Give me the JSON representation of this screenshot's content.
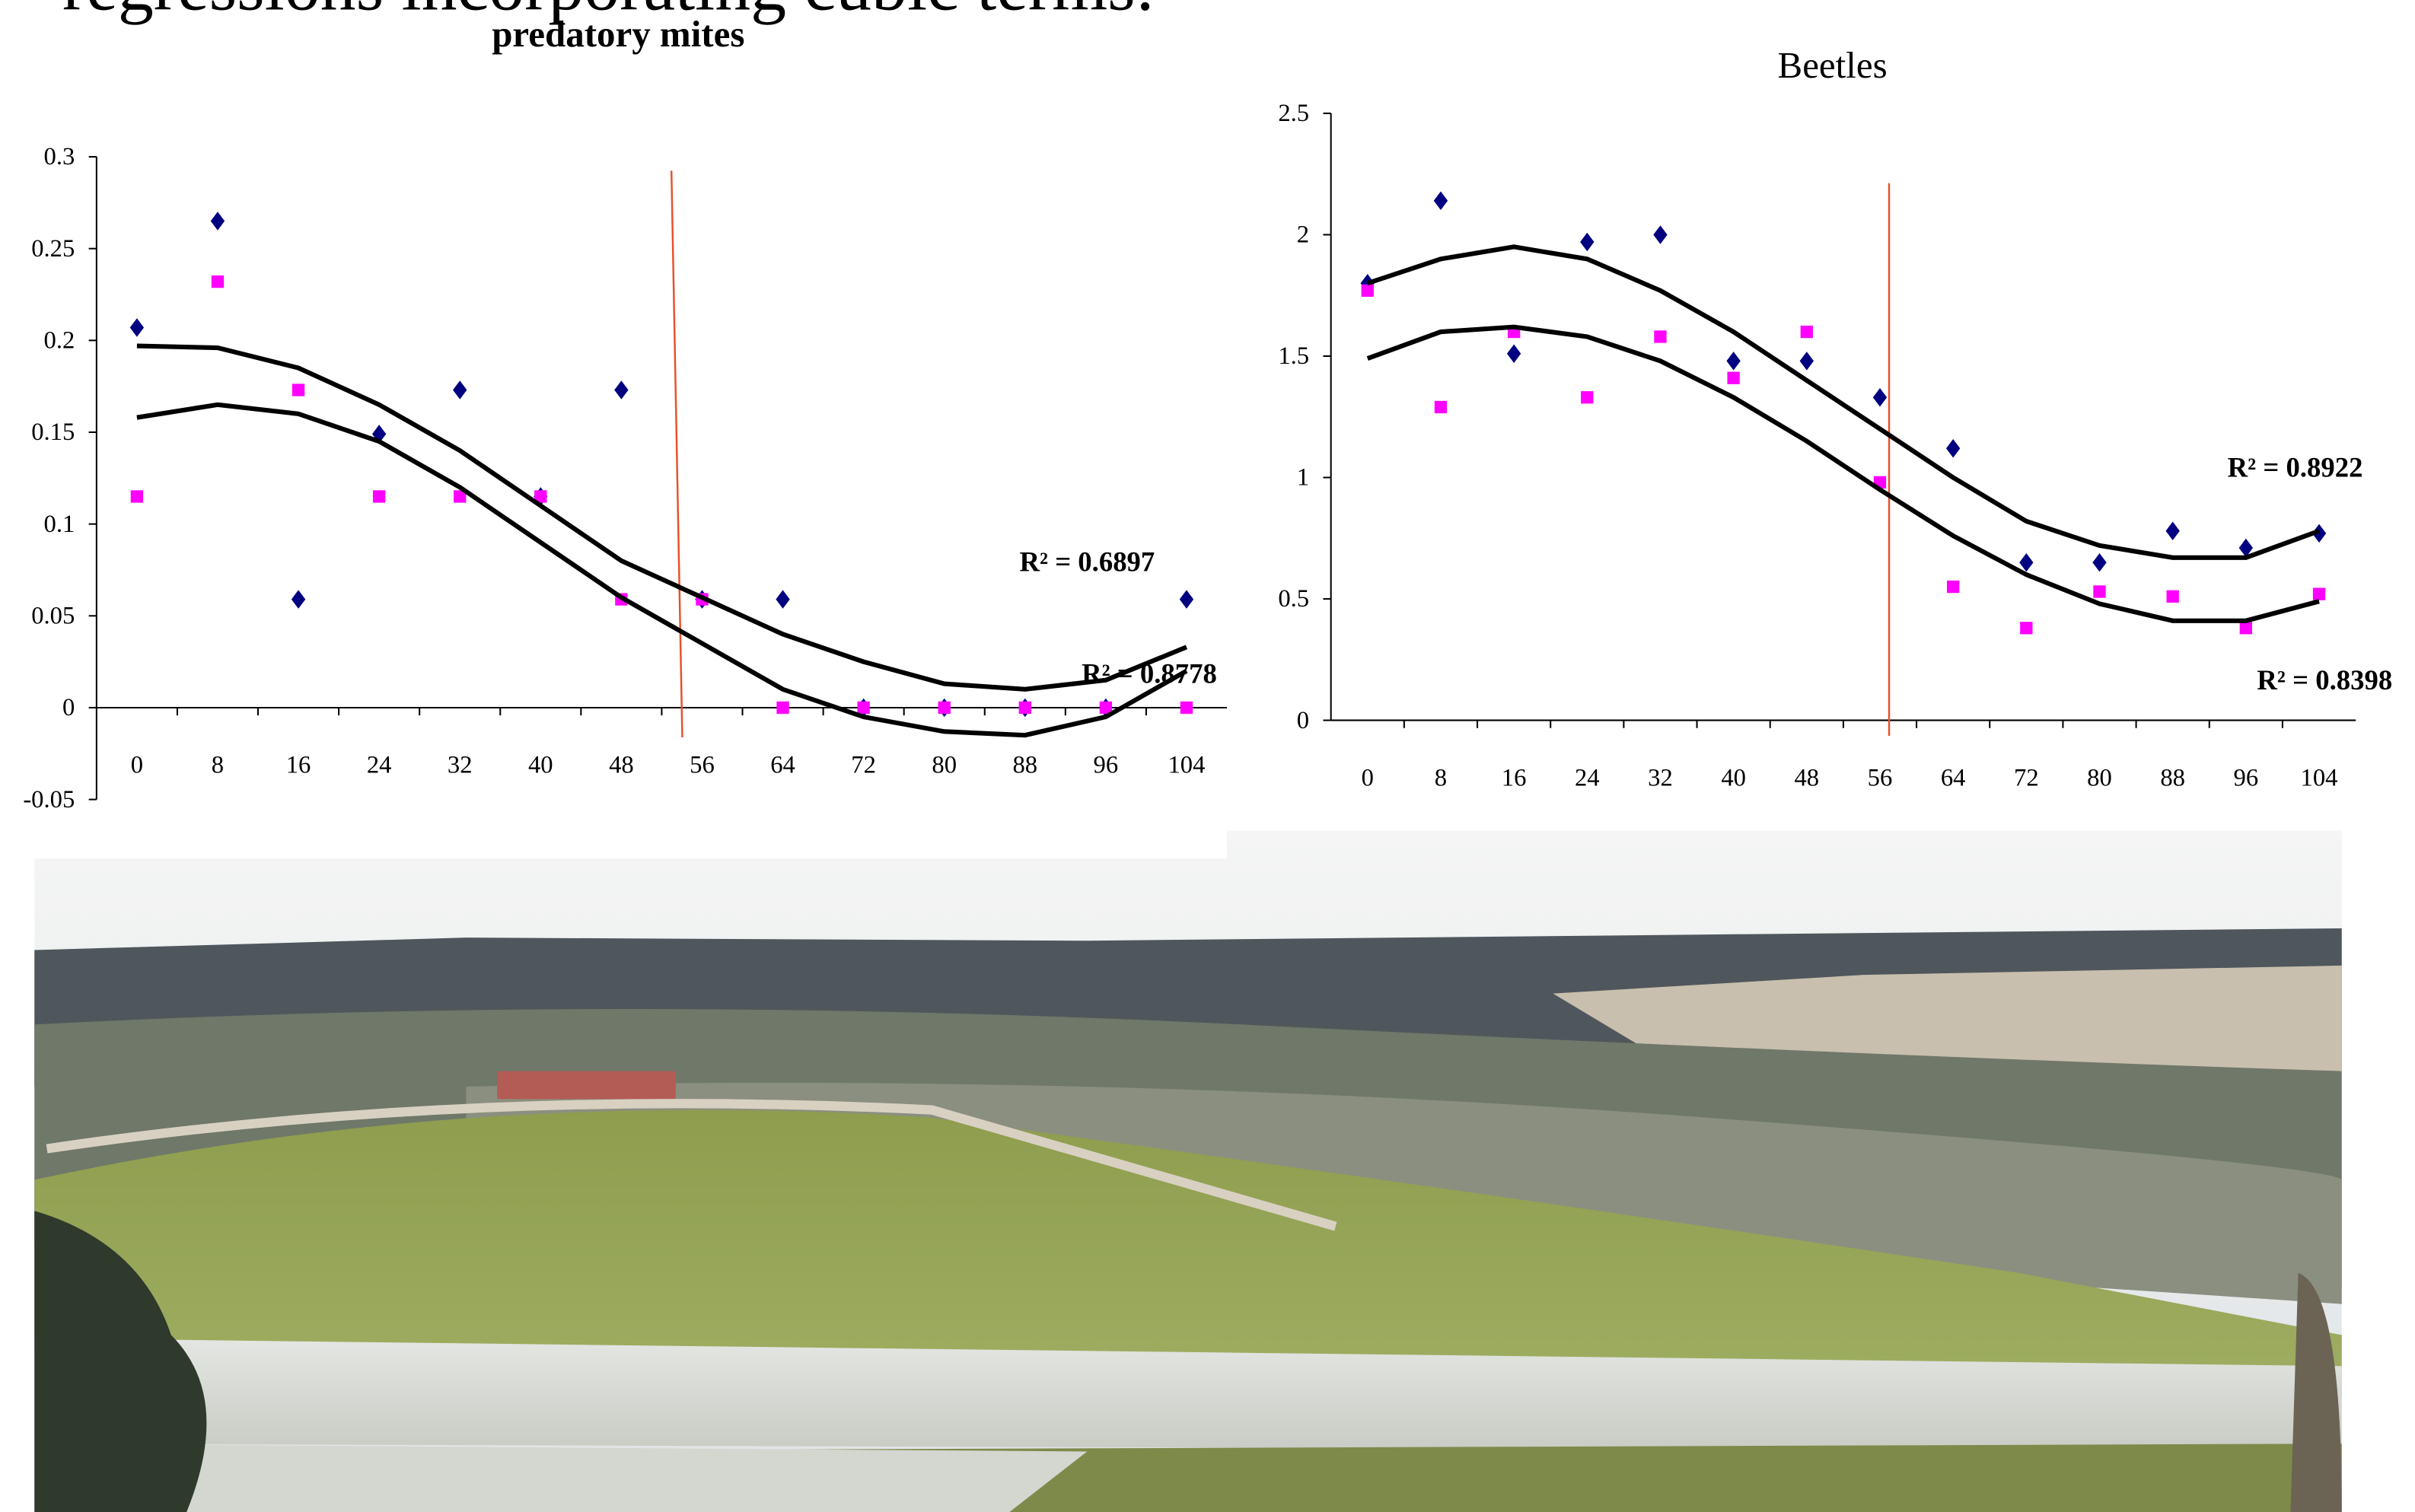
{
  "title": "regressions incorporating cubic terms:",
  "chart_data": [
    {
      "type": "scatter",
      "title": "predatory mites",
      "x": [
        0,
        8,
        16,
        24,
        32,
        40,
        48,
        56,
        64,
        72,
        80,
        88,
        96,
        104
      ],
      "xlim": [
        -4,
        108
      ],
      "ylim": [
        -0.05,
        0.3
      ],
      "yticks": [
        -0.05,
        0,
        0.05,
        0.1,
        0.15,
        0.2,
        0.25,
        0.3
      ],
      "vline": 53.5,
      "vline_color": "#e8502a",
      "series": [
        {
          "marker": "diamond",
          "color": "#000080",
          "values": [
            0.207,
            0.265,
            0.059,
            0.149,
            0.173,
            0.115,
            0.173,
            0.059,
            0.059,
            0,
            0,
            0,
            0,
            0.059
          ]
        },
        {
          "marker": "square",
          "color": "#ff00ff",
          "values": [
            0.115,
            0.232,
            0.173,
            0.115,
            0.115,
            0.115,
            0.059,
            0.059,
            0,
            0,
            0,
            0,
            0,
            0
          ]
        },
        {
          "marker": "line",
          "color": "#000000",
          "values": [
            0.197,
            0.196,
            0.185,
            0.165,
            0.14,
            0.11,
            0.08,
            0.06,
            0.04,
            0.025,
            0.013,
            0.01,
            0.015,
            0.033
          ]
        },
        {
          "marker": "line",
          "color": "#000000",
          "values": [
            0.158,
            0.165,
            0.16,
            0.145,
            0.12,
            0.09,
            0.06,
            0.035,
            0.01,
            -0.005,
            -0.013,
            -0.015,
            -0.005,
            0.02
          ]
        }
      ],
      "annotations": [
        "R² = 0.6897",
        "R² = 0.8778"
      ]
    },
    {
      "type": "scatter",
      "title": "Beetles",
      "x": [
        0,
        8,
        16,
        24,
        32,
        40,
        48,
        56,
        64,
        72,
        80,
        88,
        96,
        104
      ],
      "xlim": [
        -4,
        108
      ],
      "ylim": [
        0,
        2.5
      ],
      "yticks": [
        0,
        0.5,
        1,
        1.5,
        2,
        2.5
      ],
      "vline": 57,
      "vline_color": "#e8502a",
      "series": [
        {
          "marker": "diamond",
          "color": "#000080",
          "values": [
            1.8,
            2.14,
            1.51,
            1.97,
            2.0,
            1.48,
            1.48,
            1.33,
            1.12,
            0.65,
            0.65,
            0.78,
            0.71,
            0.77
          ]
        },
        {
          "marker": "square",
          "color": "#ff00ff",
          "values": [
            1.77,
            1.29,
            1.6,
            1.33,
            1.58,
            1.41,
            1.6,
            0.98,
            0.55,
            0.38,
            0.53,
            0.51,
            0.38,
            0.52
          ]
        },
        {
          "marker": "line",
          "color": "#000000",
          "values": [
            1.8,
            1.9,
            1.95,
            1.9,
            1.77,
            1.6,
            1.4,
            1.2,
            1.0,
            0.82,
            0.72,
            0.67,
            0.67,
            0.78
          ]
        },
        {
          "marker": "line",
          "color": "#000000",
          "values": [
            1.49,
            1.6,
            1.62,
            1.58,
            1.48,
            1.33,
            1.15,
            0.95,
            0.76,
            0.6,
            0.48,
            0.41,
            0.41,
            0.49
          ]
        }
      ],
      "annotations": [
        "R² = 0.8922",
        "R² = 0.8398"
      ]
    }
  ]
}
